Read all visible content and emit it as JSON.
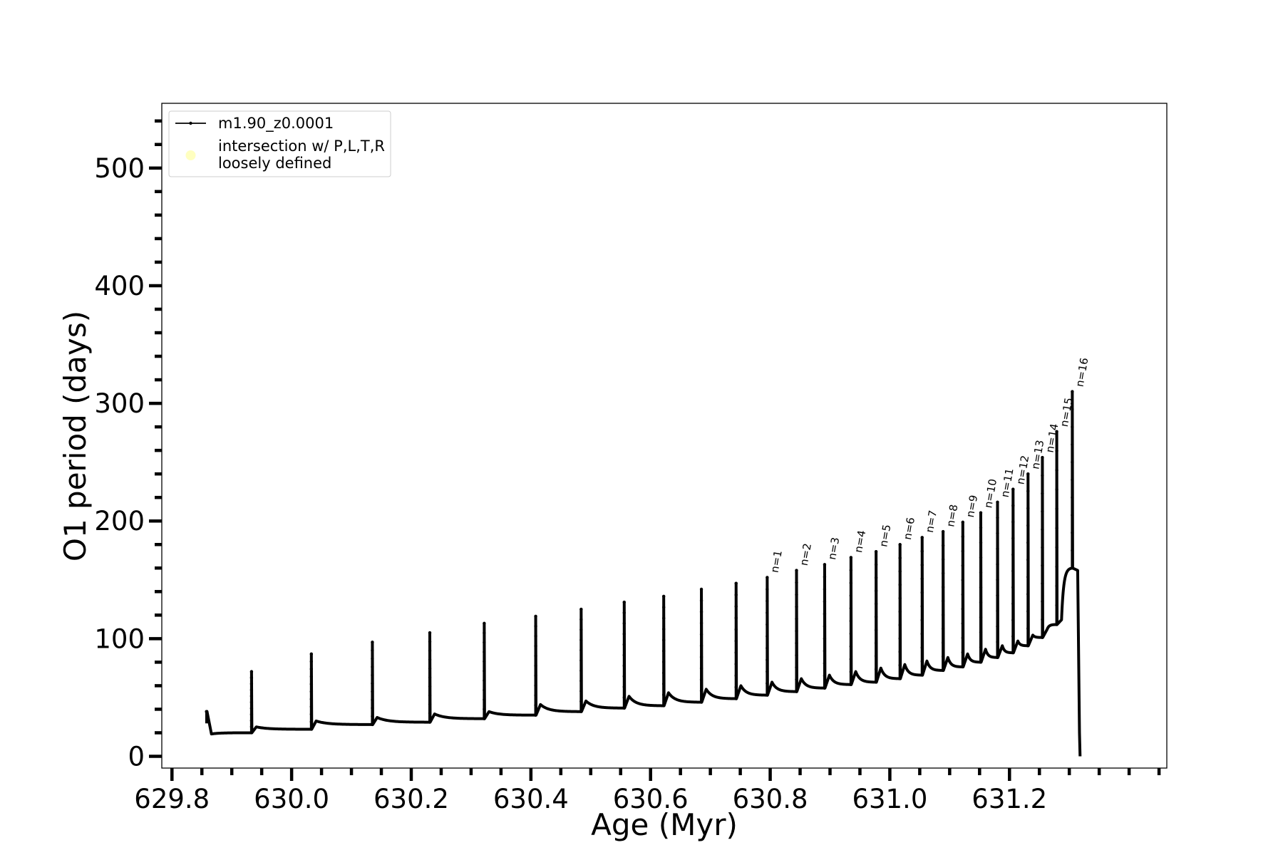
{
  "chart_data": {
    "type": "line",
    "title": "",
    "xlabel": "Age (Myr)",
    "ylabel": "O1 period (days)",
    "xlim": [
      629.783,
      631.463
    ],
    "ylim": [
      -10,
      555
    ],
    "x_major_ticks": [
      629.8,
      630.0,
      630.2,
      630.4,
      630.6,
      630.8,
      631.0,
      631.2
    ],
    "x_major_tick_labels": [
      "629.8",
      "630.0",
      "630.2",
      "630.4",
      "630.6",
      "630.8",
      "631.0",
      "631.2"
    ],
    "x_minor_step": 0.05,
    "y_major_ticks": [
      0,
      100,
      200,
      300,
      400,
      500
    ],
    "y_major_tick_labels": [
      "0",
      "100",
      "200",
      "300",
      "400",
      "500"
    ],
    "y_minor_step": 20,
    "grid": false,
    "legend_position": "top-left",
    "series": [
      {
        "name": "m1.90_z0.0001",
        "color": "#000000",
        "start": [
          629.858,
          28
        ],
        "pulses": [
          [
            629.858,
            38,
            19,
            38
          ],
          [
            629.933,
            72,
            25,
            20
          ],
          [
            630.033,
            87,
            30,
            23
          ],
          [
            630.135,
            97,
            33,
            27
          ],
          [
            630.231,
            105,
            36,
            29
          ],
          [
            630.322,
            113,
            38,
            32
          ],
          [
            630.408,
            119,
            44,
            35
          ],
          [
            630.484,
            125,
            47,
            38
          ],
          [
            630.556,
            131,
            51,
            41
          ],
          [
            630.622,
            136,
            54,
            43
          ],
          [
            630.685,
            142,
            57,
            46
          ],
          [
            630.743,
            147,
            60,
            49
          ],
          [
            630.795,
            152,
            63,
            52
          ],
          [
            630.844,
            158,
            66,
            55
          ],
          [
            630.891,
            163,
            69,
            58
          ],
          [
            630.935,
            169,
            72,
            61
          ],
          [
            630.977,
            174,
            75,
            63
          ],
          [
            631.017,
            180,
            78,
            66
          ],
          [
            631.054,
            186,
            81,
            69
          ],
          [
            631.089,
            191,
            84,
            73
          ],
          [
            631.122,
            199,
            87,
            76
          ],
          [
            631.152,
            207,
            91,
            80
          ],
          [
            631.18,
            216,
            94,
            84
          ],
          [
            631.206,
            227,
            98,
            88
          ],
          [
            631.231,
            240,
            103,
            94
          ],
          [
            631.255,
            254,
            108,
            101
          ],
          [
            631.279,
            276,
            116,
            112
          ],
          [
            631.305,
            310,
            126,
            160
          ]
        ],
        "end_drop": [
          [
            631.314,
            158
          ],
          [
            631.317,
            20
          ],
          [
            631.318,
            0
          ]
        ]
      },
      {
        "name": "intersection w/ P,L,T,R\nloosely defined",
        "name_lines": [
          "intersection w/ P,L,T,R",
          "loosely defined"
        ],
        "color": "#ffffc0",
        "values": []
      }
    ],
    "annotations": [
      {
        "text": "n=1",
        "x": 630.795,
        "y": 152
      },
      {
        "text": "n=2",
        "x": 630.844,
        "y": 158
      },
      {
        "text": "n=3",
        "x": 630.891,
        "y": 163
      },
      {
        "text": "n=4",
        "x": 630.935,
        "y": 169
      },
      {
        "text": "n=5",
        "x": 630.977,
        "y": 174
      },
      {
        "text": "n=6",
        "x": 631.017,
        "y": 180
      },
      {
        "text": "n=7",
        "x": 631.054,
        "y": 186
      },
      {
        "text": "n=8",
        "x": 631.089,
        "y": 191
      },
      {
        "text": "n=9",
        "x": 631.122,
        "y": 199
      },
      {
        "text": "n=10",
        "x": 631.152,
        "y": 207
      },
      {
        "text": "n=11",
        "x": 631.18,
        "y": 216
      },
      {
        "text": "n=12",
        "x": 631.206,
        "y": 227
      },
      {
        "text": "n=13",
        "x": 631.231,
        "y": 240
      },
      {
        "text": "n=14",
        "x": 631.255,
        "y": 254
      },
      {
        "text": "n=15",
        "x": 631.279,
        "y": 276
      },
      {
        "text": "n=16",
        "x": 631.305,
        "y": 310
      }
    ]
  }
}
